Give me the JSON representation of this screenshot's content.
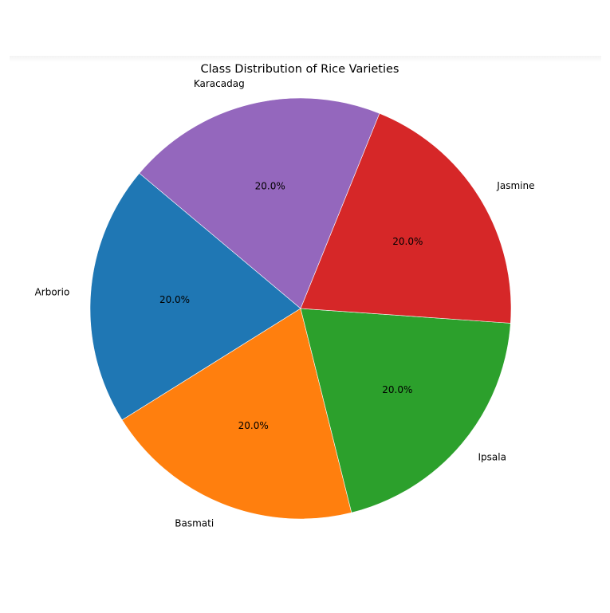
{
  "chart_data": {
    "type": "pie",
    "title": "Class Distribution of Rice Varieties",
    "labels": [
      "Arborio",
      "Basmati",
      "Ipsala",
      "Jasmine",
      "Karacadag"
    ],
    "values": [
      20.0,
      20.0,
      20.0,
      20.0,
      20.0
    ],
    "percent_labels": [
      "20.0%",
      "20.0%",
      "20.0%",
      "20.0%",
      "20.0%"
    ],
    "colors": [
      "#1f77b4",
      "#ff7f0e",
      "#2ca02c",
      "#d62728",
      "#9467bd"
    ],
    "start_angle_deg": 140,
    "direction": "counterclockwise",
    "legend": "none"
  }
}
